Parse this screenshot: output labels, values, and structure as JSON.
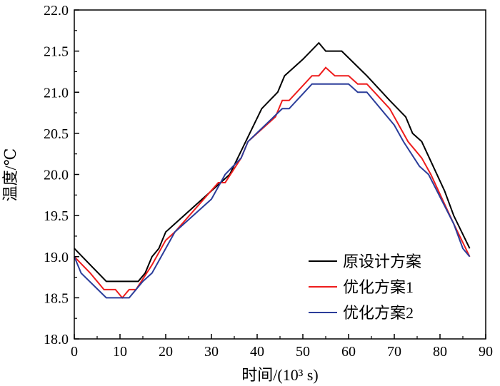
{
  "chart_data": {
    "type": "line",
    "title": "",
    "xlabel": "时间/(10³ s)",
    "ylabel": "温度/℃",
    "xlim": [
      0,
      90
    ],
    "ylim": [
      18.0,
      22.0
    ],
    "xticks": [
      "0",
      "10",
      "20",
      "30",
      "40",
      "50",
      "60",
      "70",
      "80",
      "90"
    ],
    "yticks": [
      "18.0",
      "18.5",
      "19.0",
      "19.5",
      "20.0",
      "20.5",
      "21.0",
      "21.5",
      "22.0"
    ],
    "grid": false,
    "legend_position": "bottom-right",
    "series": [
      {
        "name": "原设计方案",
        "color": "#000000",
        "points": [
          [
            0,
            19.1
          ],
          [
            7,
            18.7
          ],
          [
            14,
            18.7
          ],
          [
            15.5,
            18.8
          ],
          [
            17,
            19.0
          ],
          [
            18.5,
            19.1
          ],
          [
            20,
            19.3
          ],
          [
            22,
            19.4
          ],
          [
            30,
            19.8
          ],
          [
            32,
            19.9
          ],
          [
            34,
            20.0
          ],
          [
            41,
            20.8
          ],
          [
            44.5,
            21.0
          ],
          [
            46,
            21.2
          ],
          [
            50,
            21.4
          ],
          [
            53.5,
            21.6
          ],
          [
            55,
            21.5
          ],
          [
            58.5,
            21.5
          ],
          [
            64,
            21.2
          ],
          [
            69,
            20.9
          ],
          [
            72.5,
            20.7
          ],
          [
            74,
            20.5
          ],
          [
            76,
            20.4
          ],
          [
            81,
            19.8
          ],
          [
            83,
            19.5
          ],
          [
            86.5,
            19.1
          ]
        ]
      },
      {
        "name": "优化方案1",
        "color": "#ee1c1c",
        "points": [
          [
            0,
            19.0
          ],
          [
            3.5,
            18.8
          ],
          [
            6.5,
            18.6
          ],
          [
            9,
            18.6
          ],
          [
            10.5,
            18.5
          ],
          [
            12,
            18.6
          ],
          [
            13.5,
            18.6
          ],
          [
            17,
            18.9
          ],
          [
            20,
            19.2
          ],
          [
            22,
            19.3
          ],
          [
            31.5,
            19.9
          ],
          [
            33,
            19.9
          ],
          [
            36.5,
            20.2
          ],
          [
            38,
            20.4
          ],
          [
            44,
            20.7
          ],
          [
            45.5,
            20.9
          ],
          [
            47,
            20.9
          ],
          [
            52,
            21.2
          ],
          [
            53.5,
            21.2
          ],
          [
            55,
            21.3
          ],
          [
            57,
            21.2
          ],
          [
            60,
            21.2
          ],
          [
            62,
            21.1
          ],
          [
            64,
            21.1
          ],
          [
            69,
            20.8
          ],
          [
            73,
            20.4
          ],
          [
            76,
            20.2
          ],
          [
            78,
            20.0
          ],
          [
            83,
            19.4
          ],
          [
            86.5,
            19.0
          ]
        ]
      },
      {
        "name": "优化方案2",
        "color": "#2b3d9a",
        "points": [
          [
            0,
            19.0
          ],
          [
            1.5,
            18.8
          ],
          [
            7,
            18.5
          ],
          [
            12,
            18.5
          ],
          [
            15,
            18.7
          ],
          [
            17,
            18.8
          ],
          [
            20,
            19.1
          ],
          [
            22,
            19.3
          ],
          [
            30,
            19.7
          ],
          [
            33,
            20.0
          ],
          [
            36.5,
            20.2
          ],
          [
            38,
            20.4
          ],
          [
            45.5,
            20.8
          ],
          [
            47,
            20.8
          ],
          [
            52,
            21.1
          ],
          [
            60,
            21.1
          ],
          [
            62,
            21.0
          ],
          [
            64,
            21.0
          ],
          [
            70,
            20.6
          ],
          [
            72,
            20.4
          ],
          [
            75.5,
            20.1
          ],
          [
            77.5,
            20.0
          ],
          [
            83,
            19.4
          ],
          [
            85,
            19.1
          ],
          [
            86.5,
            19.0
          ]
        ]
      }
    ]
  }
}
